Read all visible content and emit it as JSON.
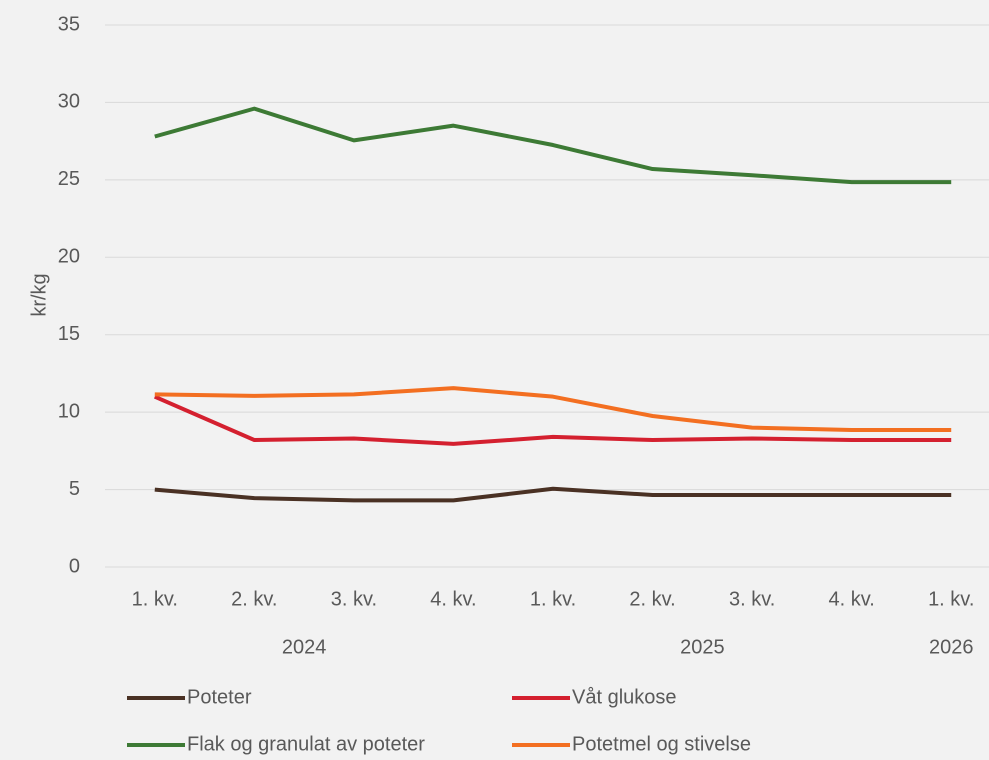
{
  "chart_data": {
    "type": "line",
    "ylabel": "kr/kg",
    "categories": [
      "1. kv.",
      "2. kv.",
      "3. kv.",
      "4. kv.",
      "1. kv.",
      "2. kv.",
      "3. kv.",
      "4. kv.",
      "1. kv."
    ],
    "year_groups": [
      {
        "label": "2024",
        "count": 4
      },
      {
        "label": "2025",
        "count": 4
      },
      {
        "label": "2026",
        "count": 1
      }
    ],
    "series": [
      {
        "name": "Poteter",
        "color": "#4a3124",
        "values": [
          5.0,
          4.45,
          4.3,
          4.3,
          5.05,
          4.65,
          4.65,
          4.65,
          4.65
        ]
      },
      {
        "name": "Våt glukose",
        "color": "#d4202f",
        "values": [
          11.0,
          8.2,
          8.3,
          7.95,
          8.4,
          8.2,
          8.3,
          8.2,
          8.2
        ]
      },
      {
        "name": "Flak og granulat av poteter",
        "color": "#3d7a35",
        "values": [
          27.8,
          29.6,
          27.55,
          28.5,
          27.25,
          25.7,
          25.3,
          24.85,
          24.85
        ]
      },
      {
        "name": "Potetmel og stivelse",
        "color": "#f36f21",
        "values": [
          11.15,
          11.05,
          11.15,
          11.55,
          11.0,
          9.75,
          9.0,
          8.85,
          8.85
        ]
      }
    ],
    "ylim": [
      0,
      35
    ],
    "yticks": [
      0,
      5,
      10,
      15,
      20,
      25,
      30,
      35
    ],
    "grid": true,
    "legend": "bottom"
  }
}
